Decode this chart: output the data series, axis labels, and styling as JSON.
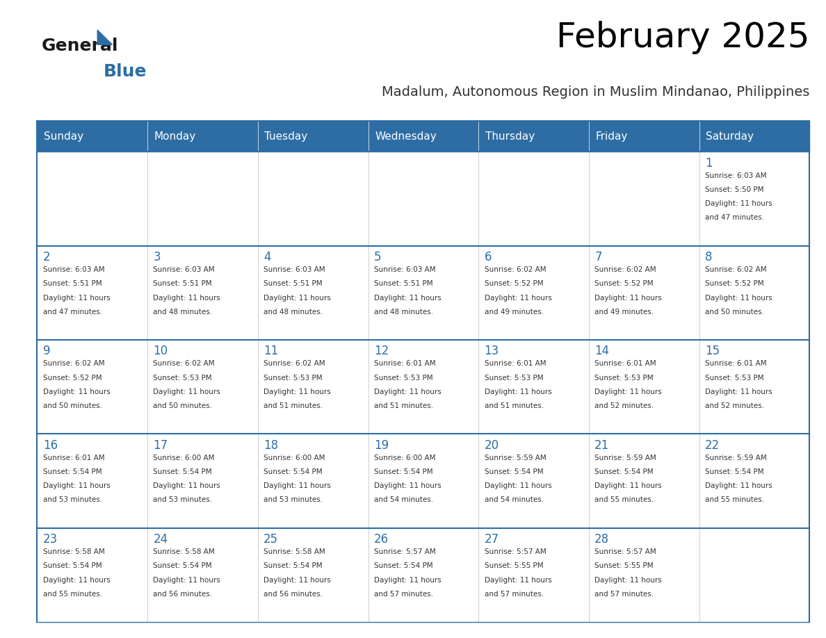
{
  "title": "February 2025",
  "subtitle": "Madalum, Autonomous Region in Muslim Mindanao, Philippines",
  "days_of_week": [
    "Sunday",
    "Monday",
    "Tuesday",
    "Wednesday",
    "Thursday",
    "Friday",
    "Saturday"
  ],
  "header_bg": "#2E6DA4",
  "header_text": "#FFFFFF",
  "cell_bg_light": "#F2F2F2",
  "cell_bg_white": "#FFFFFF",
  "border_color": "#2E6DA4",
  "text_color": "#333333",
  "title_color": "#000000",
  "subtitle_color": "#333333",
  "calendar_data": [
    [
      null,
      null,
      null,
      null,
      null,
      null,
      {
        "day": 1,
        "sunrise": "6:03 AM",
        "sunset": "5:50 PM",
        "daylight": "11 hours and 47 minutes."
      }
    ],
    [
      {
        "day": 2,
        "sunrise": "6:03 AM",
        "sunset": "5:51 PM",
        "daylight": "11 hours and 47 minutes."
      },
      {
        "day": 3,
        "sunrise": "6:03 AM",
        "sunset": "5:51 PM",
        "daylight": "11 hours and 48 minutes."
      },
      {
        "day": 4,
        "sunrise": "6:03 AM",
        "sunset": "5:51 PM",
        "daylight": "11 hours and 48 minutes."
      },
      {
        "day": 5,
        "sunrise": "6:03 AM",
        "sunset": "5:51 PM",
        "daylight": "11 hours and 48 minutes."
      },
      {
        "day": 6,
        "sunrise": "6:02 AM",
        "sunset": "5:52 PM",
        "daylight": "11 hours and 49 minutes."
      },
      {
        "day": 7,
        "sunrise": "6:02 AM",
        "sunset": "5:52 PM",
        "daylight": "11 hours and 49 minutes."
      },
      {
        "day": 8,
        "sunrise": "6:02 AM",
        "sunset": "5:52 PM",
        "daylight": "11 hours and 50 minutes."
      }
    ],
    [
      {
        "day": 9,
        "sunrise": "6:02 AM",
        "sunset": "5:52 PM",
        "daylight": "11 hours and 50 minutes."
      },
      {
        "day": 10,
        "sunrise": "6:02 AM",
        "sunset": "5:53 PM",
        "daylight": "11 hours and 50 minutes."
      },
      {
        "day": 11,
        "sunrise": "6:02 AM",
        "sunset": "5:53 PM",
        "daylight": "11 hours and 51 minutes."
      },
      {
        "day": 12,
        "sunrise": "6:01 AM",
        "sunset": "5:53 PM",
        "daylight": "11 hours and 51 minutes."
      },
      {
        "day": 13,
        "sunrise": "6:01 AM",
        "sunset": "5:53 PM",
        "daylight": "11 hours and 51 minutes."
      },
      {
        "day": 14,
        "sunrise": "6:01 AM",
        "sunset": "5:53 PM",
        "daylight": "11 hours and 52 minutes."
      },
      {
        "day": 15,
        "sunrise": "6:01 AM",
        "sunset": "5:53 PM",
        "daylight": "11 hours and 52 minutes."
      }
    ],
    [
      {
        "day": 16,
        "sunrise": "6:01 AM",
        "sunset": "5:54 PM",
        "daylight": "11 hours and 53 minutes."
      },
      {
        "day": 17,
        "sunrise": "6:00 AM",
        "sunset": "5:54 PM",
        "daylight": "11 hours and 53 minutes."
      },
      {
        "day": 18,
        "sunrise": "6:00 AM",
        "sunset": "5:54 PM",
        "daylight": "11 hours and 53 minutes."
      },
      {
        "day": 19,
        "sunrise": "6:00 AM",
        "sunset": "5:54 PM",
        "daylight": "11 hours and 54 minutes."
      },
      {
        "day": 20,
        "sunrise": "5:59 AM",
        "sunset": "5:54 PM",
        "daylight": "11 hours and 54 minutes."
      },
      {
        "day": 21,
        "sunrise": "5:59 AM",
        "sunset": "5:54 PM",
        "daylight": "11 hours and 55 minutes."
      },
      {
        "day": 22,
        "sunrise": "5:59 AM",
        "sunset": "5:54 PM",
        "daylight": "11 hours and 55 minutes."
      }
    ],
    [
      {
        "day": 23,
        "sunrise": "5:58 AM",
        "sunset": "5:54 PM",
        "daylight": "11 hours and 55 minutes."
      },
      {
        "day": 24,
        "sunrise": "5:58 AM",
        "sunset": "5:54 PM",
        "daylight": "11 hours and 56 minutes."
      },
      {
        "day": 25,
        "sunrise": "5:58 AM",
        "sunset": "5:54 PM",
        "daylight": "11 hours and 56 minutes."
      },
      {
        "day": 26,
        "sunrise": "5:57 AM",
        "sunset": "5:54 PM",
        "daylight": "11 hours and 57 minutes."
      },
      {
        "day": 27,
        "sunrise": "5:57 AM",
        "sunset": "5:55 PM",
        "daylight": "11 hours and 57 minutes."
      },
      {
        "day": 28,
        "sunrise": "5:57 AM",
        "sunset": "5:55 PM",
        "daylight": "11 hours and 57 minutes."
      },
      null
    ]
  ],
  "logo_text_general": "General",
  "logo_text_blue": "Blue",
  "logo_color_general": "#1a1a1a",
  "logo_color_blue": "#2E6DA4"
}
